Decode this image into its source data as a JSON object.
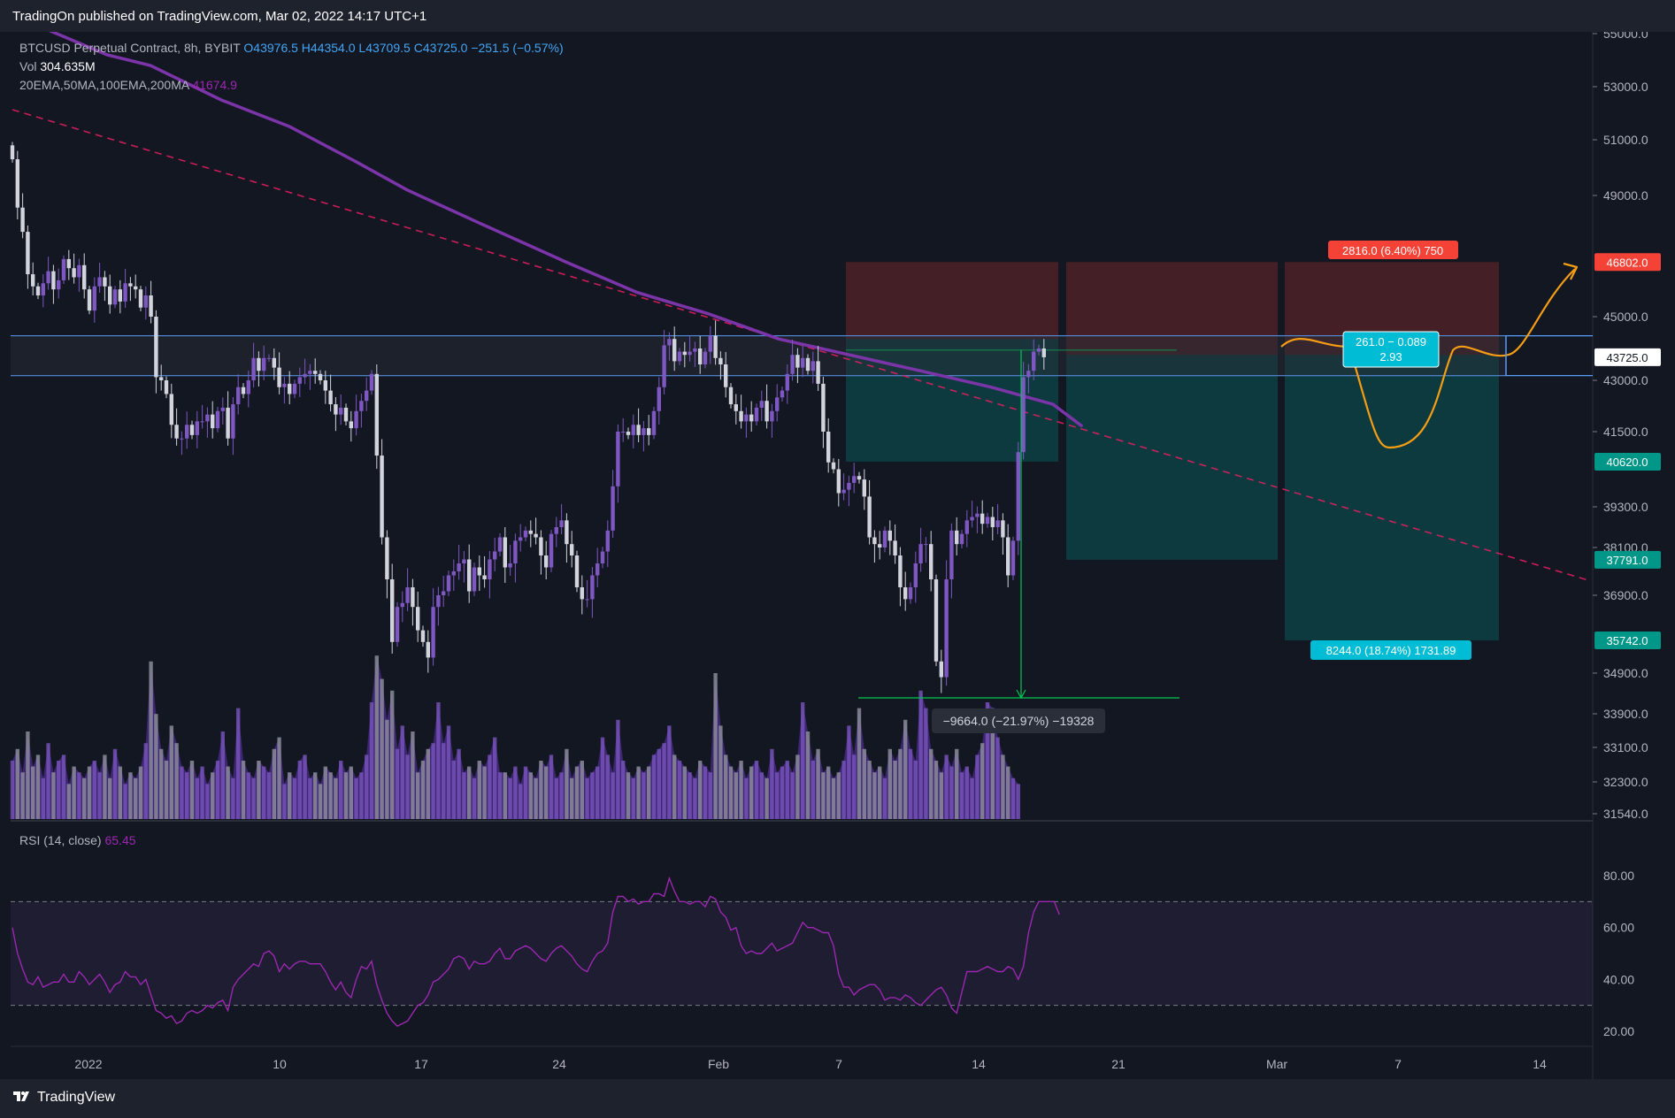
{
  "header": {
    "published": "TradingOn published on TradingView.com, Mar 02, 2022 14:17 UTC+1"
  },
  "legend": {
    "symbol": "BTCUSD Perpetual Contract, 8h, BYBIT",
    "open": "O43976.5",
    "high": "H44354.0",
    "low": "L43709.5",
    "close": "C43725.0",
    "change": "−251.5 (−0.57%)",
    "vol_label": "Vol",
    "vol_value": "304.635M",
    "ma_label": "20EMA,50MA,100EMA,200MA",
    "ma_value": "41674.9",
    "rsi_label": "RSI (14, close)",
    "rsi_value": "65.45"
  },
  "footer": {
    "brand": "TradingView"
  },
  "colors": {
    "background": "#131722",
    "up_candle": "#7e57c2",
    "down_candle": "#d1d4dc",
    "ma_line": "#7b35a8",
    "trendline": "#e91e63",
    "horizontal_level": "#2962ff",
    "rsi_line": "#9c27b0",
    "projection": "#f59d14",
    "stop_zone": "#f44336",
    "target_zone": "#009688",
    "measure": "#00c853"
  },
  "chart_data": {
    "type": "candlestick",
    "x_tick_labels": [
      "2022",
      "10",
      "17",
      "24",
      "Feb",
      "7",
      "14",
      "21",
      "Mar",
      "7",
      "14"
    ],
    "y_tick_labels": [
      "55000.0",
      "53000.0",
      "51000.0",
      "49000.0",
      "45000.0",
      "43000.0",
      "41500.0",
      "39300.0",
      "38100.0",
      "36900.0",
      "34900.0",
      "33900.0",
      "33100.0",
      "32300.0",
      "31540.0"
    ],
    "price_labels": [
      {
        "text": "46802.0",
        "price": 46802,
        "color": "#f44336"
      },
      {
        "text": "43725.0",
        "price": 43725,
        "color": "#ffffff"
      },
      {
        "text": "40620.0",
        "price": 40620,
        "color": "#009688"
      },
      {
        "text": "37791.0",
        "price": 37791,
        "color": "#009688"
      },
      {
        "text": "35742.0",
        "price": 35742,
        "color": "#009688"
      }
    ],
    "horizontal_levels": [
      44400,
      43150
    ],
    "ma_line_last": 41674.9,
    "annotations": {
      "stop_label": "2816.0 (6.40%) 750",
      "target_label": "8244.0 (18.74%) 1731.89",
      "drawdown_label": "−9664.0 (−21.97%) −19328",
      "rr_line1": "261.0 − 0.089",
      "rr_line2": "2.93"
    },
    "closes": [
      50300,
      48600,
      47800,
      46400,
      46000,
      45700,
      46100,
      46500,
      45900,
      46200,
      46900,
      46600,
      46300,
      46700,
      45900,
      45200,
      46000,
      46300,
      46000,
      45400,
      45900,
      45500,
      46100,
      46000,
      45900,
      45300,
      45700,
      45000,
      43100,
      43000,
      42600,
      41700,
      41300,
      41300,
      41700,
      41400,
      41800,
      41800,
      42000,
      41600,
      42100,
      42200,
      41300,
      42300,
      42800,
      42600,
      43000,
      43700,
      43300,
      43700,
      43700,
      43400,
      42800,
      42900,
      42600,
      42900,
      43100,
      43200,
      43300,
      43200,
      43000,
      42700,
      42300,
      42000,
      42200,
      41800,
      41600,
      42100,
      42400,
      42700,
      43200,
      40800,
      38400,
      37300,
      35700,
      36600,
      36700,
      37100,
      36600,
      36000,
      35700,
      35300,
      36600,
      36900,
      37000,
      37400,
      37500,
      37700,
      37800,
      37000,
      37600,
      37400,
      37300,
      37800,
      38000,
      38400,
      37600,
      37700,
      38300,
      38400,
      38600,
      38500,
      38400,
      37900,
      37600,
      38500,
      38700,
      38900,
      38200,
      37900,
      37100,
      36800,
      36800,
      37400,
      37700,
      38000,
      38600,
      39900,
      41500,
      41500,
      41400,
      41700,
      41400,
      41600,
      41400,
      42100,
      42800,
      44100,
      44300,
      43600,
      43900,
      43800,
      43900,
      44000,
      43500,
      43900,
      44400,
      43700,
      43500,
      42800,
      42300,
      42100,
      41800,
      42000,
      41800,
      42200,
      42400,
      41800,
      42100,
      42500,
      42700,
      43200,
      43800,
      43400,
      43700,
      43300,
      43600,
      42900,
      41500,
      40600,
      40400,
      39700,
      39800,
      40000,
      40200,
      40100,
      39600,
      38400,
      38200,
      38100,
      38600,
      38300,
      37900,
      37100,
      36800,
      37100,
      37700,
      38200,
      38200,
      37300,
      35200,
      34800,
      37300,
      38600,
      38200,
      38500,
      38900,
      39000,
      39100,
      38800,
      39000,
      38700,
      38900,
      38400,
      37400,
      38300,
      40900,
      43100,
      43300,
      43900,
      44000,
      43725
    ],
    "volumes": [
      1.0,
      1.2,
      0.8,
      1.5,
      0.9,
      1.1,
      0.7,
      1.3,
      0.8,
      1.0,
      1.1,
      0.6,
      0.9,
      0.8,
      0.7,
      0.9,
      1.0,
      0.8,
      1.1,
      0.7,
      1.2,
      0.9,
      0.6,
      0.8,
      0.7,
      0.9,
      1.3,
      2.7,
      1.8,
      1.2,
      1.0,
      1.6,
      1.3,
      0.9,
      0.8,
      1.0,
      0.7,
      0.9,
      0.6,
      0.8,
      1.0,
      1.5,
      0.9,
      0.7,
      1.9,
      1.0,
      0.8,
      0.7,
      1.0,
      0.9,
      0.8,
      1.2,
      1.4,
      0.6,
      0.8,
      0.7,
      1.0,
      1.1,
      0.7,
      0.8,
      0.6,
      0.9,
      0.8,
      0.7,
      1.0,
      0.8,
      0.9,
      0.7,
      0.8,
      1.1,
      2.0,
      2.8,
      2.4,
      1.7,
      2.2,
      1.2,
      1.6,
      1.1,
      1.5,
      0.8,
      1.0,
      1.2,
      1.3,
      2.0,
      1.3,
      1.6,
      1.0,
      1.2,
      0.8,
      0.9,
      0.7,
      1.0,
      0.9,
      1.1,
      1.4,
      0.8,
      0.8,
      0.7,
      0.9,
      0.6,
      0.9,
      0.8,
      0.7,
      1.0,
      0.9,
      1.1,
      0.7,
      0.8,
      1.2,
      0.7,
      0.9,
      1.0,
      0.7,
      0.8,
      0.9,
      1.4,
      1.1,
      0.8,
      1.7,
      1.0,
      0.8,
      0.7,
      0.9,
      0.8,
      0.9,
      1.1,
      1.2,
      1.3,
      1.6,
      1.1,
      1.0,
      0.9,
      0.8,
      0.7,
      1.0,
      0.9,
      0.8,
      2.5,
      1.6,
      1.1,
      0.9,
      0.8,
      1.0,
      0.7,
      0.9,
      1.0,
      0.8,
      0.7,
      1.2,
      0.8,
      0.9,
      1.0,
      0.8,
      1.1,
      2.0,
      1.5,
      1.0,
      1.2,
      0.8,
      0.9,
      0.7,
      0.8,
      1.0,
      1.6,
      1.1,
      1.9,
      1.2,
      1.0,
      0.8,
      0.9,
      0.7,
      1.2,
      1.0,
      1.2,
      1.7,
      1.2,
      1.0,
      2.2,
      1.9,
      1.2,
      1.0,
      0.8,
      1.1,
      0.9,
      1.2,
      0.8,
      0.9,
      0.7,
      1.1,
      1.3,
      2.0,
      1.9,
      1.4,
      1.1,
      0.9,
      0.7,
      0.6
    ],
    "ma200_points": [
      [
        -8,
        56200
      ],
      [
        57,
        55100
      ],
      [
        121,
        54200
      ],
      [
        170,
        53800
      ],
      [
        250,
        52500
      ],
      [
        327,
        51500
      ],
      [
        403,
        50200
      ],
      [
        460,
        49200
      ],
      [
        541,
        48100
      ],
      [
        640,
        46800
      ],
      [
        720,
        45800
      ],
      [
        800,
        45100
      ],
      [
        880,
        44300
      ],
      [
        960,
        43800
      ],
      [
        1040,
        43300
      ],
      [
        1120,
        42800
      ],
      [
        1190,
        42300
      ],
      [
        1222,
        41675
      ]
    ],
    "rsi": [
      60,
      50,
      44,
      39,
      38,
      41,
      37,
      38,
      39,
      39,
      42,
      39,
      39,
      43,
      41,
      38,
      40,
      42,
      39,
      35,
      38,
      39,
      43,
      41,
      41,
      38,
      40,
      34,
      28,
      27,
      25,
      26,
      23,
      24,
      27,
      28,
      27,
      28,
      30,
      29,
      31,
      32,
      28,
      37,
      40,
      42,
      44,
      46,
      45,
      50,
      51,
      49,
      43,
      46,
      44,
      46,
      47,
      47,
      46,
      46,
      46,
      43,
      39,
      36,
      39,
      35,
      33,
      40,
      45,
      44,
      47,
      38,
      32,
      27,
      24,
      22,
      23,
      24,
      27,
      30,
      31,
      34,
      39,
      40,
      42,
      44,
      48,
      49,
      48,
      44,
      47,
      46,
      46,
      47,
      50,
      52,
      48,
      48,
      51,
      52,
      53,
      52,
      50,
      48,
      47,
      50,
      52,
      53,
      51,
      49,
      46,
      44,
      43,
      47,
      50,
      51,
      54,
      66,
      72,
      72,
      70,
      71,
      69,
      70,
      70,
      73,
      73,
      72,
      79,
      74,
      70,
      70,
      69,
      70,
      70,
      68,
      72,
      71,
      66,
      64,
      59,
      60,
      53,
      50,
      51,
      50,
      50,
      52,
      54,
      51,
      52,
      53,
      54,
      58,
      62,
      60,
      60,
      59,
      58,
      58,
      53,
      42,
      37,
      37,
      34,
      36,
      37,
      38,
      38,
      36,
      32,
      33,
      33,
      32,
      34,
      33,
      31,
      30,
      32,
      34,
      36,
      37,
      34,
      29,
      27,
      35,
      43,
      43,
      43,
      44,
      45,
      44,
      43,
      43,
      45,
      44,
      40,
      45,
      58,
      66,
      70,
      70,
      70,
      70,
      65
    ],
    "rsi_ylim": [
      20,
      80
    ],
    "rsi_bands": [
      70,
      30
    ]
  }
}
